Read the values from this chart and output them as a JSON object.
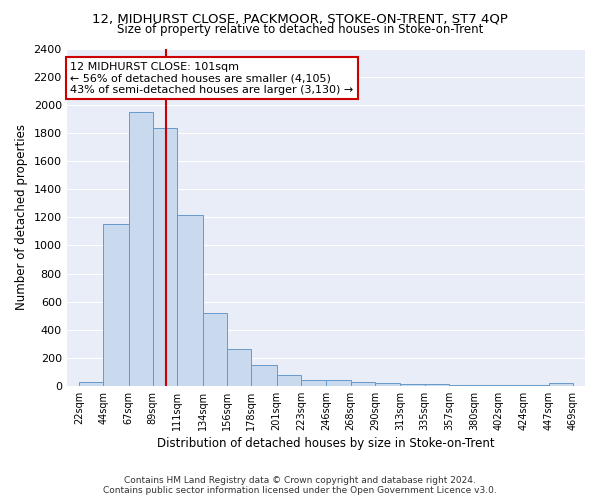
{
  "title1": "12, MIDHURST CLOSE, PACKMOOR, STOKE-ON-TRENT, ST7 4QP",
  "title2": "Size of property relative to detached houses in Stoke-on-Trent",
  "xlabel": "Distribution of detached houses by size in Stoke-on-Trent",
  "ylabel": "Number of detached properties",
  "footnote": "Contains HM Land Registry data © Crown copyright and database right 2024.\nContains public sector information licensed under the Open Government Licence v3.0.",
  "annotation_line1": "12 MIDHURST CLOSE: 101sqm",
  "annotation_line2": "← 56% of detached houses are smaller (4,105)",
  "annotation_line3": "43% of semi-detached houses are larger (3,130) →",
  "bar_left_edges": [
    22,
    44,
    67,
    89,
    111,
    134,
    156,
    178,
    201,
    223,
    246,
    268,
    290,
    313,
    335,
    357,
    380,
    402,
    424,
    447
  ],
  "bar_widths": [
    22,
    23,
    22,
    22,
    23,
    22,
    22,
    23,
    22,
    23,
    22,
    22,
    23,
    22,
    22,
    23,
    22,
    22,
    23,
    22
  ],
  "bar_heights": [
    25,
    1150,
    1950,
    1840,
    1215,
    520,
    265,
    150,
    80,
    45,
    40,
    30,
    20,
    15,
    15,
    5,
    5,
    5,
    5,
    20
  ],
  "bar_color": "#c9d9ee",
  "bar_edge_color": "#6699cc",
  "red_line_x": 101,
  "red_line_color": "#cc0000",
  "ylim": [
    0,
    2400
  ],
  "yticks": [
    0,
    200,
    400,
    600,
    800,
    1000,
    1200,
    1400,
    1600,
    1800,
    2000,
    2200,
    2400
  ],
  "xtick_labels": [
    "22sqm",
    "44sqm",
    "67sqm",
    "89sqm",
    "111sqm",
    "134sqm",
    "156sqm",
    "178sqm",
    "201sqm",
    "223sqm",
    "246sqm",
    "268sqm",
    "290sqm",
    "313sqm",
    "335sqm",
    "357sqm",
    "380sqm",
    "402sqm",
    "424sqm",
    "447sqm",
    "469sqm"
  ],
  "xtick_positions": [
    22,
    44,
    67,
    89,
    111,
    134,
    156,
    178,
    201,
    223,
    246,
    268,
    290,
    313,
    335,
    357,
    380,
    402,
    424,
    447,
    469
  ],
  "fig_bg_color": "#ffffff",
  "plot_bg_color": "#e8edf8",
  "grid_color": "#ffffff",
  "annotation_box_color": "#ffffff",
  "annotation_box_edge": "#cc0000"
}
